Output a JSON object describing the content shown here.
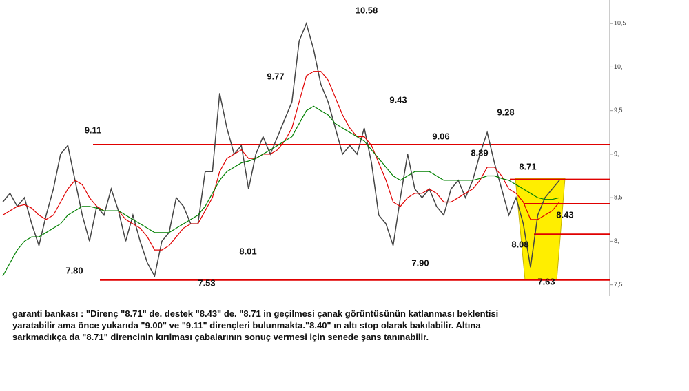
{
  "chart_data": {
    "type": "line",
    "ylim": [
      7.45,
      10.77
    ],
    "yticks": [
      {
        "value": 7.5,
        "label": "7,5"
      },
      {
        "value": 8,
        "label": "8,"
      },
      {
        "value": 8.5,
        "label": "8,5"
      },
      {
        "value": 9,
        "label": "9,"
      },
      {
        "value": 9.5,
        "label": "9,5"
      },
      {
        "value": 10,
        "label": "10,"
      },
      {
        "value": 10.5,
        "label": "10,5"
      }
    ],
    "series": [
      {
        "color": "#444444",
        "values": [
          8.45,
          8.55,
          8.4,
          8.5,
          8.2,
          7.95,
          8.3,
          8.6,
          9.0,
          9.1,
          8.7,
          8.3,
          8.0,
          8.4,
          8.3,
          8.6,
          8.35,
          8.0,
          8.3,
          8.0,
          7.75,
          7.6,
          8.0,
          8.1,
          8.5,
          8.4,
          8.2,
          8.2,
          8.8,
          8.8,
          9.7,
          9.3,
          9.0,
          9.1,
          8.6,
          9.0,
          9.2,
          9.0,
          9.2,
          9.4,
          9.6,
          10.3,
          10.5,
          10.2,
          9.8,
          9.6,
          9.3,
          9.0,
          9.1,
          9.0,
          9.3,
          8.9,
          8.3,
          8.2,
          7.95,
          8.5,
          9.0,
          8.6,
          8.5,
          8.6,
          8.4,
          8.3,
          8.6,
          8.7,
          8.5,
          8.7,
          9.0,
          9.25,
          8.9,
          8.6,
          8.3,
          8.5,
          8.2,
          7.7,
          8.3,
          8.5,
          8.6,
          8.7
        ]
      },
      {
        "color": "#e00000",
        "values": [
          8.3,
          8.35,
          8.4,
          8.42,
          8.38,
          8.3,
          8.25,
          8.3,
          8.45,
          8.6,
          8.7,
          8.65,
          8.5,
          8.4,
          8.35,
          8.35,
          8.35,
          8.25,
          8.2,
          8.15,
          8.05,
          7.9,
          7.9,
          7.95,
          8.05,
          8.15,
          8.2,
          8.2,
          8.35,
          8.5,
          8.8,
          8.95,
          9.0,
          9.05,
          8.95,
          8.95,
          9.0,
          9.0,
          9.05,
          9.15,
          9.3,
          9.6,
          9.9,
          9.95,
          9.95,
          9.85,
          9.65,
          9.45,
          9.3,
          9.2,
          9.2,
          9.1,
          8.9,
          8.7,
          8.45,
          8.4,
          8.5,
          8.55,
          8.55,
          8.6,
          8.55,
          8.45,
          8.45,
          8.5,
          8.55,
          8.6,
          8.7,
          8.85,
          8.85,
          8.75,
          8.6,
          8.55,
          8.45,
          8.25,
          8.25,
          8.3,
          8.35,
          8.45
        ]
      },
      {
        "color": "#008000",
        "values": [
          7.6,
          7.75,
          7.9,
          8.0,
          8.05,
          8.05,
          8.1,
          8.15,
          8.2,
          8.3,
          8.35,
          8.4,
          8.4,
          8.38,
          8.35,
          8.35,
          8.35,
          8.3,
          8.25,
          8.2,
          8.15,
          8.1,
          8.1,
          8.1,
          8.15,
          8.2,
          8.25,
          8.3,
          8.4,
          8.55,
          8.7,
          8.8,
          8.85,
          8.9,
          8.92,
          8.95,
          9.0,
          9.05,
          9.1,
          9.15,
          9.2,
          9.35,
          9.5,
          9.55,
          9.5,
          9.45,
          9.35,
          9.3,
          9.25,
          9.2,
          9.15,
          9.05,
          8.95,
          8.85,
          8.75,
          8.7,
          8.75,
          8.8,
          8.8,
          8.8,
          8.75,
          8.7,
          8.7,
          8.7,
          8.7,
          8.7,
          8.72,
          8.75,
          8.75,
          8.72,
          8.7,
          8.65,
          8.6,
          8.55,
          8.5,
          8.48,
          8.48,
          8.5
        ]
      }
    ],
    "levels": [
      9.11,
      8.71,
      8.43,
      8.08,
      7.555
    ],
    "level_color": "#e00000",
    "annotations": [
      {
        "value": 9.11,
        "label": "9.11"
      },
      {
        "value": 7.8,
        "label": "7.80"
      },
      {
        "value": 7.53,
        "label": "7.53"
      },
      {
        "value": 8.01,
        "label": "8.01"
      },
      {
        "value": 9.77,
        "label": "9.77"
      },
      {
        "value": 10.58,
        "label": "10.58"
      },
      {
        "value": 9.43,
        "label": "9.43"
      },
      {
        "value": 7.9,
        "label": "7.90"
      },
      {
        "value": 9.06,
        "label": "9.06"
      },
      {
        "value": 8.89,
        "label": "8.89"
      },
      {
        "value": 9.28,
        "label": "9.28"
      },
      {
        "value": 8.71,
        "label": "8.71"
      },
      {
        "value": 8.43,
        "label": "8.43"
      },
      {
        "value": 8.08,
        "label": "8.08"
      },
      {
        "value": 7.63,
        "label": "7.63"
      }
    ]
  },
  "note": [
    "garanti bankası : \"Direnç \"8.71\" de. destek \"8.43\" de. \"8.71 in geçilmesi çanak görüntüsünün katlanması beklentisi",
    "yaratabilir ama önce yukarıda \"9.00\" ve \"9.11\" dirençleri bulunmakta.\"8.40\" ın altı stop olarak bakılabilir. Altına",
    "sarkmadıkça da \"8.71\" direncinin kırılması çabalarının sonuç vermesi için senede şans tanınabilir."
  ]
}
